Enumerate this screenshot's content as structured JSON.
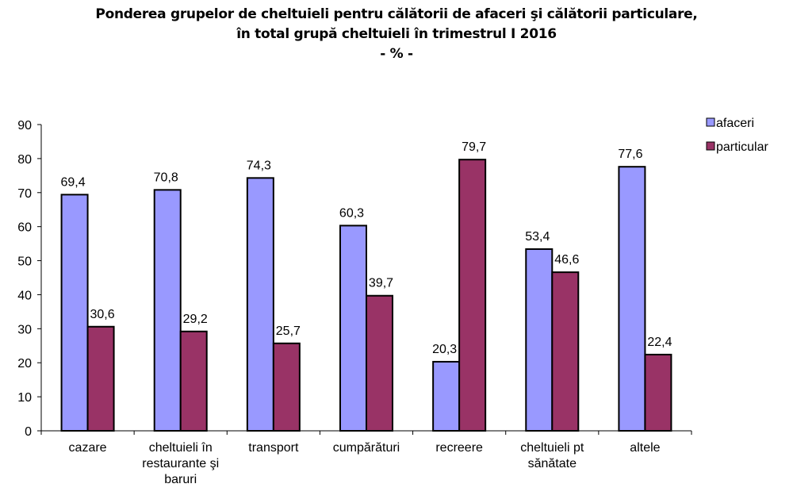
{
  "chart_data": {
    "type": "bar",
    "title_lines": [
      "Ponderea grupelor de cheltuieli pentru călătorii de afaceri şi călătorii particulare,",
      "în total grupă cheltuieli în trimestrul I 2016",
      "- % -"
    ],
    "categories": [
      [
        "cazare"
      ],
      [
        "cheltuieli în",
        "restaurante şi",
        "baruri"
      ],
      [
        "transport"
      ],
      [
        "cumpărături"
      ],
      [
        "recreere"
      ],
      [
        "cheltuieli pt",
        "sănătate"
      ],
      [
        "altele"
      ]
    ],
    "series": [
      {
        "name": "afaceri",
        "color": "#9999FF",
        "values": [
          69.4,
          70.8,
          74.3,
          60.3,
          20.3,
          53.4,
          77.6
        ],
        "labels": [
          "69,4",
          "70,8",
          "74,3",
          "60,3",
          "20,3",
          "53,4",
          "77,6"
        ]
      },
      {
        "name": "particular",
        "color": "#993366",
        "values": [
          30.6,
          29.2,
          25.7,
          39.7,
          79.7,
          46.6,
          22.4
        ],
        "labels": [
          "30,6",
          "29,2",
          "25,7",
          "39,7",
          "79,7",
          "46,6",
          "22,4"
        ]
      }
    ],
    "ylim": [
      0,
      90
    ],
    "yticks": [
      0,
      10,
      20,
      30,
      40,
      50,
      60,
      70,
      80,
      90
    ],
    "xlabel": "",
    "ylabel": "",
    "legend": "top-right",
    "grid": false
  }
}
